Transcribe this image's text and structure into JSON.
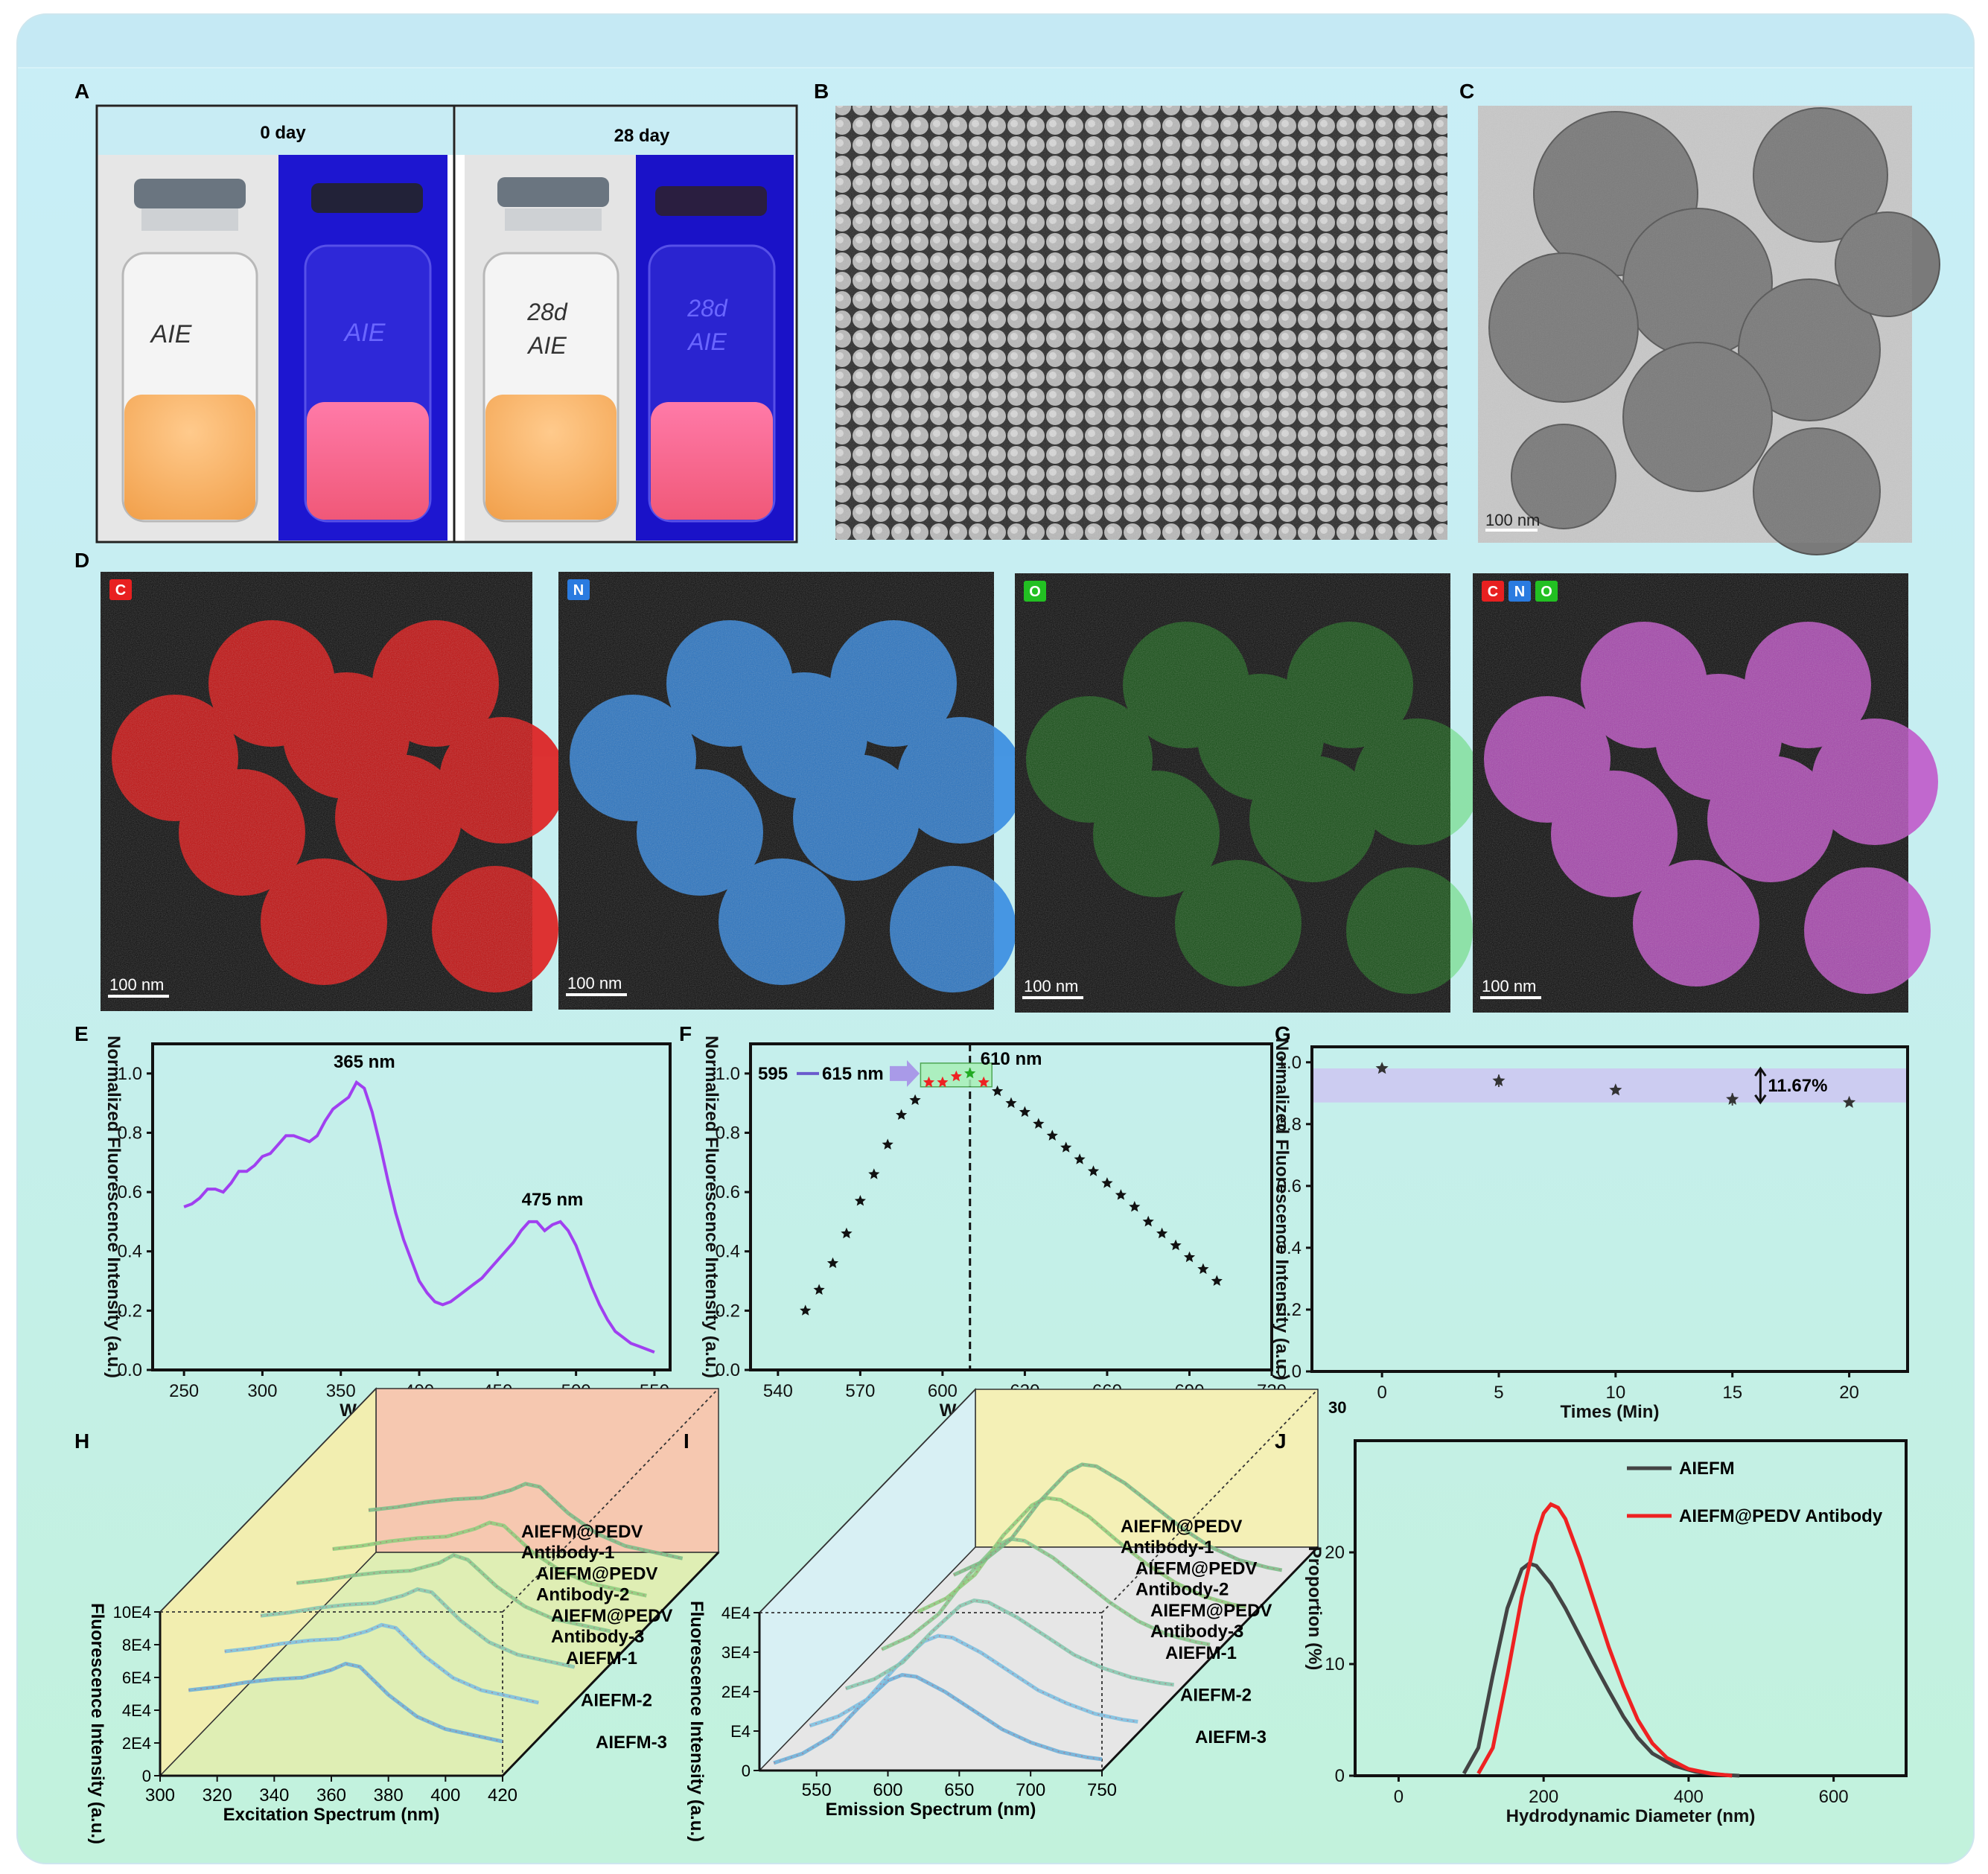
{
  "panels": {
    "A": {
      "letter": "A",
      "left_header": "0 day",
      "right_header": "28 day",
      "vial_labels": [
        {
          "line1": "AIE",
          "line2": ""
        },
        {
          "line1": "AIE",
          "line2": ""
        },
        {
          "line1": "28d",
          "line2": "AIE"
        },
        {
          "line1": "28d",
          "line2": "AIE"
        }
      ]
    },
    "B": {
      "letter": "B"
    },
    "C": {
      "letter": "C",
      "scale_bar": "100 nm"
    },
    "D": {
      "letter": "D",
      "maps": [
        {
          "tags": [
            "C"
          ],
          "color": "#e01010",
          "scale_bar": "100 nm"
        },
        {
          "tags": [
            "N"
          ],
          "color": "#2f86e0",
          "scale_bar": "100 nm"
        },
        {
          "tags": [
            "O"
          ],
          "color": "#26c826",
          "scale_bar": "100 nm"
        },
        {
          "tags": [
            "C",
            "N",
            "O"
          ],
          "color": "#c050c8",
          "scale_bar": "100 nm"
        }
      ],
      "tag_colors": {
        "C": "#e82020",
        "N": "#2a7be0",
        "O": "#22c022"
      }
    },
    "E": {
      "letter": "E"
    },
    "F": {
      "letter": "F",
      "annotation_peak": "610 nm",
      "annotation_range_start": "595",
      "annotation_range_end": "615 nm"
    },
    "G": {
      "letter": "G",
      "annotation_pct": "11.67%",
      "extra_label": "30"
    },
    "H": {
      "letter": "H",
      "ylabel": "Fluorescence  Intensity (a.u.)",
      "xlabel": "Excitation Spectrum (nm)",
      "x_ticks": [
        "300",
        "320",
        "340",
        "360",
        "380",
        "400",
        "420"
      ],
      "y_ticks": [
        "0",
        "2E4",
        "4E4",
        "6E4",
        "8E4",
        "10E4"
      ],
      "series_labels": [
        "AIEFM-3",
        "AIEFM-2",
        "AIEFM-1",
        "AIEFM@PEDV",
        "Antibody-3",
        "AIEFM@PEDV",
        "Antibody-2",
        "AIEFM@PEDV",
        "Antibody-1"
      ]
    },
    "I": {
      "letter": "I",
      "ylabel": "Fluorescence  Intensity (a.u.)",
      "xlabel": "Emission Spectrum (nm)",
      "x_ticks": [
        "550",
        "600",
        "650",
        "700",
        "750"
      ],
      "y_ticks": [
        "0",
        "E4",
        "2E4",
        "3E4",
        "4E4"
      ],
      "series_labels": [
        "AIEFM-3",
        "AIEFM-2",
        "AIEFM-1",
        "AIEFM@PEDV",
        "Antibody-3",
        "AIEFM@PEDV",
        "Antibody-2",
        "AIEFM@PEDV",
        "Antibody-1"
      ]
    },
    "J": {
      "letter": "J"
    }
  },
  "chart_data": [
    {
      "id": "E",
      "type": "line",
      "title": "",
      "xlabel": "Wavelength (nm)",
      "ylabel": "Normalized Fluorescence Intensity (a.u.)",
      "xlim": [
        230,
        560
      ],
      "ylim": [
        0,
        1.1
      ],
      "x_ticks": [
        250,
        300,
        350,
        400,
        450,
        500,
        550
      ],
      "y_ticks": [
        0.0,
        0.2,
        0.4,
        0.6,
        0.8,
        1.0
      ],
      "annotations": [
        "365 nm",
        "475 nm"
      ],
      "color": "#a040f0",
      "series": [
        {
          "x": [
            250,
            255,
            260,
            265,
            270,
            275,
            280,
            285,
            290,
            295,
            300,
            305,
            310,
            315,
            320,
            325,
            330,
            335,
            340,
            345,
            350,
            355,
            360,
            365,
            370,
            375,
            380,
            385,
            390,
            395,
            400,
            405,
            410,
            415,
            420,
            425,
            430,
            435,
            440,
            445,
            450,
            455,
            460,
            465,
            470,
            475,
            480,
            485,
            490,
            495,
            500,
            505,
            510,
            515,
            520,
            525,
            530,
            535,
            540,
            545,
            550
          ],
          "y": [
            0.55,
            0.56,
            0.58,
            0.61,
            0.61,
            0.6,
            0.63,
            0.67,
            0.67,
            0.69,
            0.72,
            0.73,
            0.76,
            0.79,
            0.79,
            0.78,
            0.77,
            0.79,
            0.84,
            0.88,
            0.9,
            0.92,
            0.97,
            0.95,
            0.87,
            0.76,
            0.64,
            0.53,
            0.44,
            0.37,
            0.3,
            0.26,
            0.23,
            0.22,
            0.23,
            0.25,
            0.27,
            0.29,
            0.31,
            0.34,
            0.37,
            0.4,
            0.43,
            0.47,
            0.5,
            0.5,
            0.47,
            0.49,
            0.5,
            0.47,
            0.42,
            0.35,
            0.28,
            0.22,
            0.17,
            0.13,
            0.11,
            0.09,
            0.08,
            0.07,
            0.06
          ]
        }
      ]
    },
    {
      "id": "F",
      "type": "scatter",
      "title": "",
      "xlabel": "Wavelength (nm)",
      "ylabel": "Normalized Fluorescence Intensity (a.u.)",
      "xlim": [
        530,
        720
      ],
      "ylim": [
        0,
        1.1
      ],
      "x_ticks": [
        540,
        570,
        600,
        630,
        660,
        690,
        720
      ],
      "y_ticks": [
        0.0,
        0.2,
        0.4,
        0.6,
        0.8,
        1.0
      ],
      "peak_line_x": 610,
      "highlight_range": [
        595,
        615
      ],
      "series": [
        {
          "x": [
            550,
            555,
            560,
            565,
            570,
            575,
            580,
            585,
            590,
            595,
            600,
            605,
            610,
            615,
            620,
            625,
            630,
            635,
            640,
            645,
            650,
            655,
            660,
            665,
            670,
            675,
            680,
            685,
            690,
            695,
            700
          ],
          "y": [
            0.2,
            0.27,
            0.36,
            0.46,
            0.57,
            0.66,
            0.76,
            0.86,
            0.91,
            0.97,
            0.97,
            0.99,
            1.0,
            0.97,
            0.94,
            0.9,
            0.87,
            0.83,
            0.79,
            0.75,
            0.71,
            0.67,
            0.63,
            0.59,
            0.55,
            0.5,
            0.46,
            0.42,
            0.38,
            0.34,
            0.3
          ]
        }
      ]
    },
    {
      "id": "G",
      "type": "scatter",
      "title": "",
      "xlabel": "Times (Min)",
      "ylabel": "Normalized Fluorescence Intensity (a.u.)",
      "xlim": [
        -3,
        22.5
      ],
      "ylim": [
        0,
        1.05
      ],
      "x_ticks": [
        0,
        5,
        10,
        15,
        20
      ],
      "y_ticks": [
        0.0,
        0.2,
        0.4,
        0.6,
        0.8,
        1.0
      ],
      "band": [
        0.87,
        0.98
      ],
      "series": [
        {
          "x": [
            0,
            5,
            10,
            15,
            20
          ],
          "y": [
            0.98,
            0.94,
            0.91,
            0.88,
            0.87
          ],
          "err": [
            0.01,
            0.02,
            0.01,
            0.02,
            0.01
          ]
        }
      ]
    },
    {
      "id": "H",
      "type": "line",
      "title": "",
      "xlabel": "Excitation Spectrum (nm)",
      "ylabel": "Fluorescence  Intensity (a.u.)",
      "xlim": [
        300,
        420
      ],
      "ylim": [
        0,
        100000
      ],
      "series": [
        {
          "name": "AIEFM@PEDV Antibody-1",
          "x": [
            310,
            320,
            330,
            340,
            350,
            360,
            365,
            370,
            380,
            390,
            400,
            410,
            420
          ],
          "y": [
            55000,
            57000,
            60000,
            62000,
            63000,
            68000,
            72000,
            70000,
            52000,
            38000,
            30000,
            26000,
            22000
          ]
        },
        {
          "name": "AIEFM@PEDV Antibody-2",
          "x": [
            310,
            320,
            330,
            340,
            350,
            360,
            365,
            370,
            380,
            390,
            400,
            410,
            420
          ],
          "y": [
            56000,
            58000,
            61000,
            63000,
            64000,
            69000,
            73000,
            71000,
            53000,
            39000,
            31000,
            27000,
            23000
          ]
        },
        {
          "name": "AIEFM@PEDV Antibody-3",
          "x": [
            310,
            320,
            330,
            340,
            350,
            360,
            365,
            370,
            380,
            390,
            400,
            410,
            420
          ],
          "y": [
            55000,
            57000,
            60000,
            62000,
            63000,
            68000,
            72000,
            70000,
            52000,
            38000,
            30000,
            26000,
            22000
          ]
        },
        {
          "name": "AIEFM-1",
          "x": [
            310,
            320,
            330,
            340,
            350,
            360,
            365,
            370,
            380,
            390,
            400,
            410,
            420
          ],
          "y": [
            52000,
            54000,
            57000,
            59000,
            60000,
            65000,
            70000,
            67000,
            50000,
            37000,
            29000,
            25000,
            21000
          ]
        },
        {
          "name": "AIEFM-2",
          "x": [
            310,
            320,
            330,
            340,
            350,
            360,
            365,
            370,
            380,
            390,
            400,
            410,
            420
          ],
          "y": [
            50000,
            52000,
            55000,
            57000,
            58000,
            63000,
            67000,
            65000,
            48000,
            36000,
            28000,
            24000,
            20000
          ]
        },
        {
          "name": "AIEFM-3",
          "x": [
            310,
            320,
            330,
            340,
            350,
            360,
            365,
            370,
            380,
            390,
            400,
            410,
            420
          ],
          "y": [
            51000,
            53000,
            56000,
            58000,
            59000,
            64000,
            68000,
            66000,
            49000,
            36000,
            28000,
            24000,
            20000
          ]
        }
      ]
    },
    {
      "id": "I",
      "type": "line",
      "title": "",
      "xlabel": "Emission Spectrum (nm)",
      "ylabel": "Fluorescence  Intensity (a.u.)",
      "xlim": [
        510,
        750
      ],
      "ylim": [
        0,
        40000
      ],
      "series": [
        {
          "name": "AIEFM@PEDV Antibody-1",
          "x": [
            520,
            540,
            560,
            580,
            600,
            610,
            620,
            640,
            660,
            680,
            700,
            720,
            740,
            750
          ],
          "y": [
            2000,
            4500,
            9000,
            17000,
            24000,
            25500,
            25000,
            21000,
            16000,
            11000,
            7500,
            5000,
            3500,
            3000
          ]
        },
        {
          "name": "AIEFM@PEDV Antibody-2",
          "x": [
            520,
            540,
            560,
            580,
            600,
            610,
            620,
            640,
            660,
            680,
            700,
            720,
            740,
            750
          ],
          "y": [
            2000,
            4500,
            9000,
            17500,
            24500,
            26000,
            25500,
            21500,
            16500,
            11500,
            8000,
            5200,
            3600,
            3100
          ]
        },
        {
          "name": "AIEFM@PEDV Antibody-3",
          "x": [
            520,
            540,
            560,
            580,
            600,
            610,
            620,
            640,
            660,
            680,
            700,
            720,
            740,
            750
          ],
          "y": [
            2000,
            4500,
            9000,
            17000,
            24000,
            25500,
            25000,
            21000,
            16000,
            11000,
            7500,
            5000,
            3500,
            3000
          ]
        },
        {
          "name": "AIEFM-1",
          "x": [
            520,
            540,
            560,
            580,
            600,
            610,
            620,
            640,
            660,
            680,
            700,
            720,
            740,
            750
          ],
          "y": [
            2500,
            6000,
            12000,
            22000,
            30000,
            32000,
            31500,
            27000,
            21000,
            15000,
            10000,
            6500,
            4500,
            3800
          ]
        },
        {
          "name": "AIEFM-2",
          "x": [
            520,
            540,
            560,
            580,
            600,
            610,
            620,
            640,
            660,
            680,
            700,
            720,
            740,
            750
          ],
          "y": [
            2600,
            6200,
            12500,
            23000,
            31000,
            33000,
            32500,
            28000,
            21500,
            15500,
            10500,
            6800,
            4600,
            3900
          ]
        },
        {
          "name": "AIEFM-3",
          "x": [
            520,
            540,
            560,
            580,
            600,
            610,
            620,
            640,
            660,
            680,
            700,
            720,
            740,
            750
          ],
          "y": [
            2500,
            6000,
            12000,
            22000,
            30000,
            32000,
            31500,
            27000,
            21000,
            15000,
            10000,
            6500,
            4500,
            3800
          ]
        }
      ]
    },
    {
      "id": "J",
      "type": "line",
      "title": "",
      "xlabel": "Hydrodynamic Diameter (nm)",
      "ylabel": "Proportion  (%)",
      "xlim": [
        -60,
        700
      ],
      "ylim": [
        0,
        30
      ],
      "x_ticks": [
        0,
        200,
        400,
        600
      ],
      "y_ticks": [
        0.0,
        10,
        20
      ],
      "legend": "top-right",
      "series": [
        {
          "name": "AIEFM",
          "color": "#444444",
          "x": [
            90,
            110,
            130,
            150,
            170,
            180,
            190,
            210,
            230,
            250,
            270,
            290,
            310,
            330,
            350,
            380,
            410,
            440,
            470
          ],
          "y": [
            0.2,
            2.5,
            9,
            15,
            18.5,
            19,
            18.8,
            17.2,
            15,
            12.5,
            10,
            7.6,
            5.3,
            3.4,
            2.0,
            0.9,
            0.35,
            0.1,
            0
          ]
        },
        {
          "name": "AIEFM@PEDV Antibody",
          "color": "#ee2222",
          "x": [
            110,
            130,
            150,
            170,
            190,
            200,
            210,
            220,
            230,
            250,
            270,
            290,
            310,
            330,
            350,
            370,
            400,
            430,
            460
          ],
          "y": [
            0.2,
            2.5,
            9,
            16,
            21.5,
            23.5,
            24.3,
            24.0,
            23,
            19.5,
            15.5,
            11.5,
            8,
            5,
            2.9,
            1.6,
            0.6,
            0.2,
            0
          ]
        }
      ]
    }
  ]
}
